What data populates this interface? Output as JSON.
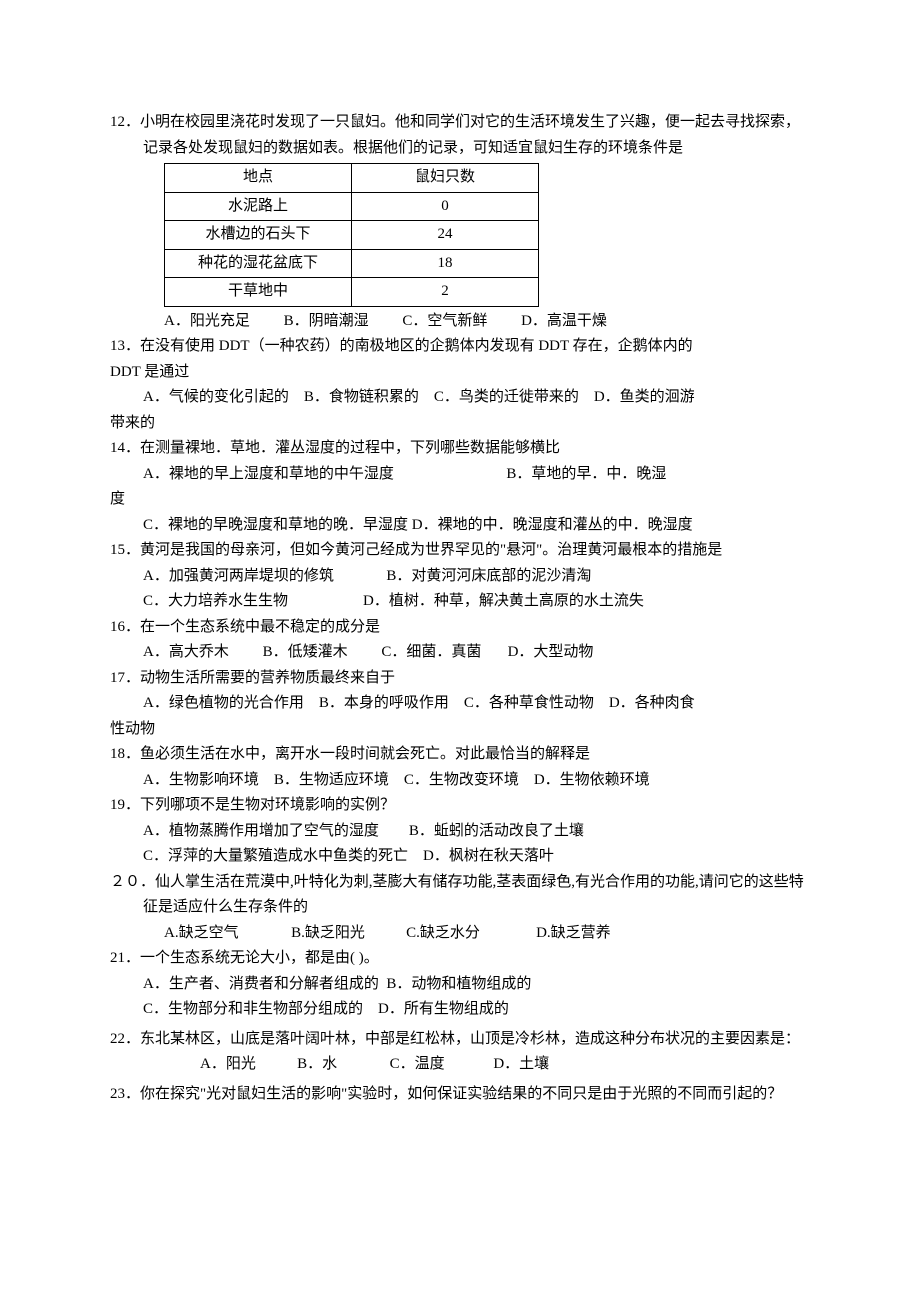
{
  "q12": {
    "num": "12．",
    "stem": "小明在校园里浇花时发现了一只鼠妇。他和同学们对它的生活环境发生了兴趣，便一起去寻找探索，记录各处发现鼠妇的数据如表。根据他们的记录，可知适宜鼠妇生存的环境条件是",
    "table": {
      "header": [
        "地点",
        "鼠妇只数"
      ],
      "rows": [
        [
          "水泥路上",
          "0"
        ],
        [
          "水槽边的石头下",
          "24"
        ],
        [
          "种花的湿花盆底下",
          "18"
        ],
        [
          "干草地中",
          "2"
        ]
      ]
    },
    "opts": "A．阳光充足         B．阴暗潮湿         C．空气新鲜         D．高温干燥"
  },
  "q13": {
    "num": "13．",
    "stem1": "在没有使用 DDT（一种农药）的南极地区的企鹅体内发现有 DDT 存在，企鹅体内的",
    "stem2": "DDT 是通过",
    "opts1": "A．气候的变化引起的    B．食物链积累的    C．鸟类的迁徙带来的    D．鱼类的洄游",
    "opts2": "带来的"
  },
  "q14": {
    "num": "14．",
    "stem": "在测量裸地．草地．灌丛湿度的过程中，下列哪些数据能够横比",
    "optA": "A．裸地的早上湿度和草地的中午湿度",
    "optB": "B．草地的早．中．晚湿",
    "optB2": "度",
    "optCD": "C．裸地的早晚湿度和草地的晚．早湿度 D．裸地的中．晚湿度和灌丛的中．晚湿度"
  },
  "q15": {
    "num": "15．",
    "stem": "黄河是我国的母亲河，但如今黄河己经成为世界罕见的\"悬河\"。治理黄河最根本的措施是",
    "optAB": "A．加强黄河两岸堤坝的修筑              B．对黄河河床底部的泥沙清淘",
    "optCD": "C．大力培养水生生物                    D．植树．种草，解决黄土高原的水土流失"
  },
  "q16": {
    "num": "16．",
    "stem": "在一个生态系统中最不稳定的成分是",
    "opts": "A．高大乔木         B．低矮灌木         C．细菌．真菌       D．大型动物"
  },
  "q17": {
    "num": "17．",
    "stem": "动物生活所需要的营养物质最终来自于",
    "opts1": "A．绿色植物的光合作用    B．本身的呼吸作用    C．各种草食性动物    D．各种肉食",
    "opts2": "性动物"
  },
  "q18": {
    "num": "18．",
    "stem": "鱼必须生活在水中，离开水一段时间就会死亡。对此最恰当的解释是",
    "opts": "A．生物影响环境    B．生物适应环境    C．生物改变环境    D．生物依赖环境"
  },
  "q19": {
    "num": "19．",
    "stem": "下列哪项不是生物对环境影响的实例？",
    "optAB": "A．植物蒸腾作用增加了空气的湿度        B．蚯蚓的活动改良了土壤",
    "optCD": "C．浮萍的大量繁殖造成水中鱼类的死亡    D．枫树在秋天落叶"
  },
  "q20": {
    "num": "２０．",
    "stem": "仙人掌生活在荒漠中,叶特化为刺,茎膨大有储存功能,茎表面绿色,有光合作用的功能,请问它的这些特征是适应什么生存条件的",
    "opts": "A.缺乏空气              B.缺乏阳光           C.缺乏水分               D.缺乏营养"
  },
  "q21": {
    "num": "21．",
    "stem": "一个生态系统无论大小，都是由( )。",
    "optAB": "A．生产者、消费者和分解者组成的  B．动物和植物组成的",
    "optCD": "C．生物部分和非生物部分组成的    D．所有生物组成的"
  },
  "q22": {
    "num": "22．",
    "stem": "东北某林区，山底是落叶阔叶林，中部是红松林，山顶是冷杉林，造成这种分布状况的主要因素是：",
    "opts": "A．阳光           B．水              C．温度             D．土壤"
  },
  "q23": {
    "num": "23．",
    "stem": "你在探究\"光对鼠妇生活的影响\"实验时，如何保证实验结果的不同只是由于光照的不同而引起的？"
  }
}
